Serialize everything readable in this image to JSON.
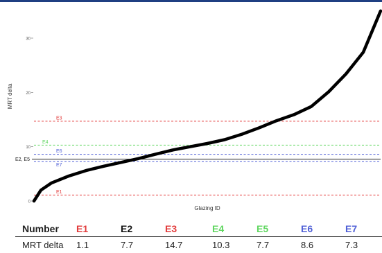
{
  "colors": {
    "top_bar": "#1f3f82"
  },
  "chart_data": {
    "type": "line",
    "xlabel": "Glazing ID",
    "ylabel": "MRT delta",
    "ylim": [
      0,
      36
    ],
    "yticks": [
      0,
      10,
      20,
      30
    ],
    "x": [
      0,
      2,
      5,
      10,
      15,
      20,
      25,
      30,
      35,
      40,
      45,
      50,
      55,
      60,
      65,
      70,
      75,
      80,
      85,
      90,
      95,
      100
    ],
    "y": [
      0,
      2.0,
      3.3,
      4.6,
      5.6,
      6.4,
      7.1,
      7.8,
      8.6,
      9.4,
      10.0,
      10.6,
      11.3,
      12.3,
      13.5,
      14.8,
      15.9,
      17.4,
      20.1,
      23.4,
      27.4,
      35.0
    ],
    "line_color": "#000000",
    "reference_lines": [
      {
        "label": "E1",
        "value": 1.1,
        "color": "#e23b3b"
      },
      {
        "label": "E3",
        "value": 14.7,
        "color": "#e23b3b"
      },
      {
        "label": "E4",
        "value": 10.3,
        "color": "#5fd65f"
      },
      {
        "label": "E6",
        "value": 8.6,
        "color": "#4f5fd6"
      },
      {
        "label": "E2, E5",
        "value": 7.7,
        "color": "#222222"
      },
      {
        "label": "E7",
        "value": 7.3,
        "color": "#4f5fd6"
      }
    ]
  },
  "table": {
    "row_header_label": "Number",
    "row_value_label": "MRT delta",
    "columns": [
      {
        "name": "E1",
        "value": "1.1",
        "color": "#e23b3b"
      },
      {
        "name": "E2",
        "value": "7.7",
        "color": "#111111"
      },
      {
        "name": "E3",
        "value": "14.7",
        "color": "#e23b3b"
      },
      {
        "name": "E4",
        "value": "10.3",
        "color": "#5fd65f"
      },
      {
        "name": "E5",
        "value": "7.7",
        "color": "#5fd65f"
      },
      {
        "name": "E6",
        "value": "8.6",
        "color": "#4f5fd6"
      },
      {
        "name": "E7",
        "value": "7.3",
        "color": "#4f5fd6"
      }
    ]
  }
}
